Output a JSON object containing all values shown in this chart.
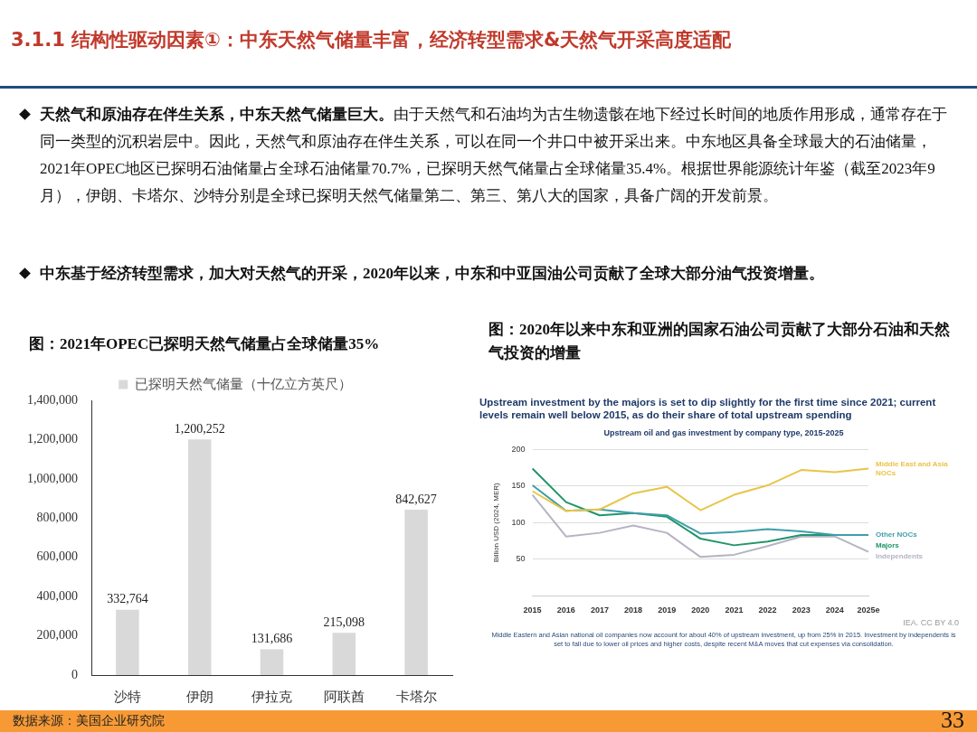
{
  "chart_data": [
    {
      "type": "other",
      "title": "3.1.1 结构性驱动因素①：中东天然气储量丰富，经济转型需求&天然气开采高度适配",
      "annotations": [
        "天然气和原油存在伴生关系，中东天然气储量巨大。",
        "由于天然气和石油均为古生物遗骸在地下经过长时间的地质作用形成，通常存在于同一类型的沉积岩层中。因此，天然气和原油存在伴生关系，可以在同一个井口中被开采出来。中东地区具备全球最大的石油储量，2021年OPEC地区已探明石油储量占全球石油储量70.7%，已探明天然气储量占全球储量35.4%。根据世界能源统计年鉴（截至2023年9月），伊朗、卡塔尔、沙特分别是全球已探明天然气储量第二、第三、第八大的国家，具备广阔的开发前景。",
        "中东基于经济转型需求，加大对天然气的开采，2020年以来，中东和中亚国油公司贡献了全球大部分油气投资增量。",
        "数据来源：美国企业研究院",
        "33"
      ]
    },
    {
      "type": "bar",
      "title": "图：2021年OPEC已探明天然气储量占全球储量35%",
      "categories": [
        "沙特",
        "伊朗",
        "伊拉克",
        "阿联酋",
        "卡塔尔"
      ],
      "series": [
        {
          "name": "已探明天然气储量（十亿立方英尺）",
          "color": "#d9d9d9",
          "values": [
            332764,
            1200252,
            131686,
            215098,
            842627
          ],
          "value_labels": [
            "332,764",
            "1,200,252",
            "131,686",
            "215,098",
            "842,627"
          ]
        }
      ],
      "ylim": [
        0,
        1400000
      ],
      "yticks": [
        {
          "value": 0,
          "label": "0"
        },
        {
          "value": 200000,
          "label": "200,000"
        },
        {
          "value": 400000,
          "label": "400,000"
        },
        {
          "value": 600000,
          "label": "600,000"
        },
        {
          "value": 800000,
          "label": "800,000"
        },
        {
          "value": 1000000,
          "label": "1,000,000"
        },
        {
          "value": 1200000,
          "label": "1,200,000"
        },
        {
          "value": 1400000,
          "label": "1,400,000"
        }
      ],
      "legend": "top",
      "grid": false
    },
    {
      "type": "line",
      "title": "图：2020年以来中东和亚洲的国家石油公司贡献了大部分石油和天然气投资的增量",
      "subtitle": "Upstream investment by the majors is set to dip slightly for the first time since 2021; current levels remain well below 2015, as do their share of total upstream spending",
      "ylabel": "Billion USD (2024, MER)",
      "categories": [
        "2015",
        "2016",
        "2017",
        "2018",
        "2019",
        "2020",
        "2021",
        "2022",
        "2023",
        "2024",
        "2025e"
      ],
      "series": [
        {
          "name": "Middle East and Asia NOCs",
          "color": "#e8c547",
          "values": [
            143,
            116,
            118,
            140,
            149,
            117,
            138,
            151,
            172,
            169,
            174
          ]
        },
        {
          "name": "Other NOCs",
          "color": "#3f9ea8",
          "values": [
            151,
            116,
            118,
            113,
            110,
            85,
            87,
            91,
            88,
            83,
            83
          ]
        },
        {
          "name": "Majors",
          "color": "#21946a",
          "values": [
            174,
            128,
            110,
            113,
            108,
            78,
            69,
            74,
            83,
            83,
            83
          ]
        },
        {
          "name": "Independents",
          "color": "#b4b4c4",
          "values": [
            138,
            81,
            86,
            96,
            86,
            53,
            56,
            68,
            81,
            81,
            60
          ]
        }
      ],
      "ylim": [
        0,
        200
      ],
      "yticks": [
        {
          "value": 0,
          "label": null
        },
        50,
        100,
        150,
        200
      ],
      "grid": "y",
      "legend": false,
      "marker": "none",
      "line_style": "solid",
      "annotations": [
        "Upstream oil and gas investment by company type, 2015-2025",
        "IEA. CC BY 4.0",
        "Middle Eastern and Asian national oil companies now account for about 40% of upstream investment, up from 25% in 2015. Investment by independents is set to fall due to lower oil prices and higher costs, despite recent M&A moves that cut expenses via consolidation."
      ]
    }
  ]
}
